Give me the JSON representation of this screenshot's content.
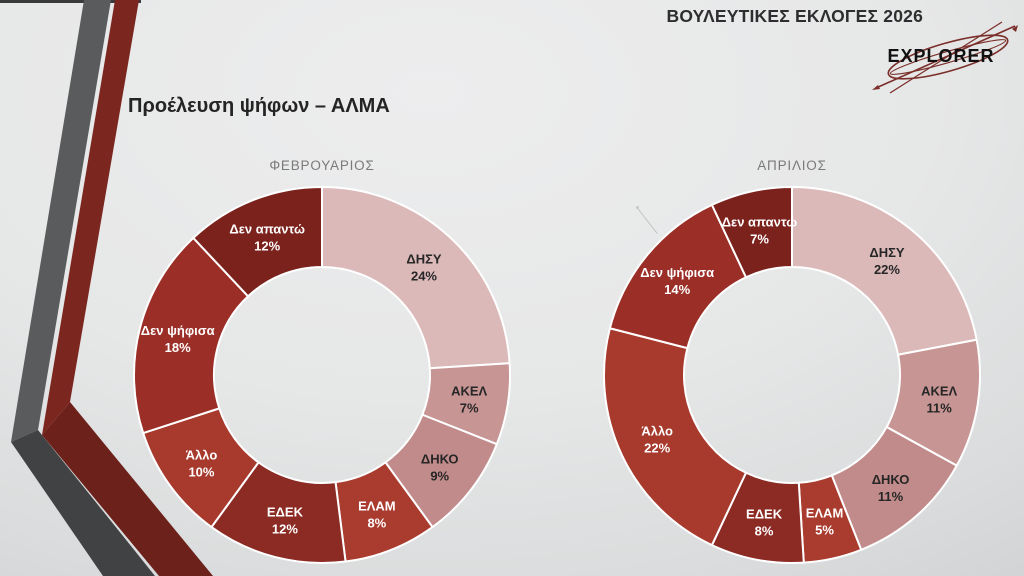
{
  "header": {
    "title": "ΒΟΥΛΕΥΤΙΚΕΣ ΕΚΛΟΓΕΣ 2026",
    "logo_text": "EXPLORER"
  },
  "slide": {
    "title": "Προέλευση ψήφων – ΑΛΜΑ"
  },
  "colors": {
    "stripe_gray_upper": "#5a5b5d",
    "stripe_gray_lower": "#414244",
    "stripe_red_upper": "#7c2620",
    "stripe_red_lower": "#6c211b",
    "logo_swoosh": "#7b2f2a",
    "logo_text_color": "#111111",
    "header_text": "#2e2e30",
    "title_text": "#242424",
    "month_label_text": "#7a7a7a",
    "slice_separator": "#ffffff"
  },
  "chart_data": [
    {
      "type": "pie",
      "subtype": "donut",
      "title": "ΦΕΒΡΟΥΑΡΙΟΣ",
      "unit": "%",
      "start_angle_deg": 0,
      "direction": "clockwise",
      "legend_position": "none",
      "slices": [
        {
          "label": "ΔΗΣΥ",
          "value": 24,
          "color": "#dcb9b9",
          "text_color": "#262626"
        },
        {
          "label": "ΑΚΕΛ",
          "value": 7,
          "color": "#c89595",
          "text_color": "#262626"
        },
        {
          "label": "ΔΗΚΟ",
          "value": 9,
          "color": "#c18b8b",
          "text_color": "#262626"
        },
        {
          "label": "ΕΛΑΜ",
          "value": 8,
          "color": "#aa3c2f",
          "text_color": "#ffffff"
        },
        {
          "label": "ΕΔΕΚ",
          "value": 12,
          "color": "#8c2b24",
          "text_color": "#ffffff"
        },
        {
          "label": "Άλλο",
          "value": 10,
          "color": "#a7392d",
          "text_color": "#ffffff"
        },
        {
          "label": "Δεν ψήφισα",
          "value": 18,
          "color": "#9b2e26",
          "text_color": "#ffffff"
        },
        {
          "label": "Δεν απαντώ",
          "value": 12,
          "color": "#7c221d",
          "text_color": "#ffffff"
        }
      ]
    },
    {
      "type": "pie",
      "subtype": "donut",
      "title": "ΑΠΡΙΛΙΟΣ",
      "unit": "%",
      "start_angle_deg": 0,
      "direction": "clockwise",
      "legend_position": "none",
      "slices": [
        {
          "label": "ΔΗΣΥ",
          "value": 22,
          "color": "#dcb9b9",
          "text_color": "#262626"
        },
        {
          "label": "ΑΚΕΛ",
          "value": 11,
          "color": "#c89595",
          "text_color": "#262626"
        },
        {
          "label": "ΔΗΚΟ",
          "value": 11,
          "color": "#c18b8b",
          "text_color": "#262626"
        },
        {
          "label": "ΕΛΑΜ",
          "value": 5,
          "color": "#aa3c2f",
          "text_color": "#ffffff"
        },
        {
          "label": "ΕΔΕΚ",
          "value": 8,
          "color": "#8c2b24",
          "text_color": "#ffffff"
        },
        {
          "label": "Άλλο",
          "value": 22,
          "color": "#a7392d",
          "text_color": "#ffffff"
        },
        {
          "label": "Δεν ψήφισα",
          "value": 14,
          "color": "#9b2e26",
          "text_color": "#ffffff"
        },
        {
          "label": "Δεν απαντώ",
          "value": 7,
          "color": "#7c221d",
          "text_color": "#ffffff"
        }
      ]
    }
  ]
}
